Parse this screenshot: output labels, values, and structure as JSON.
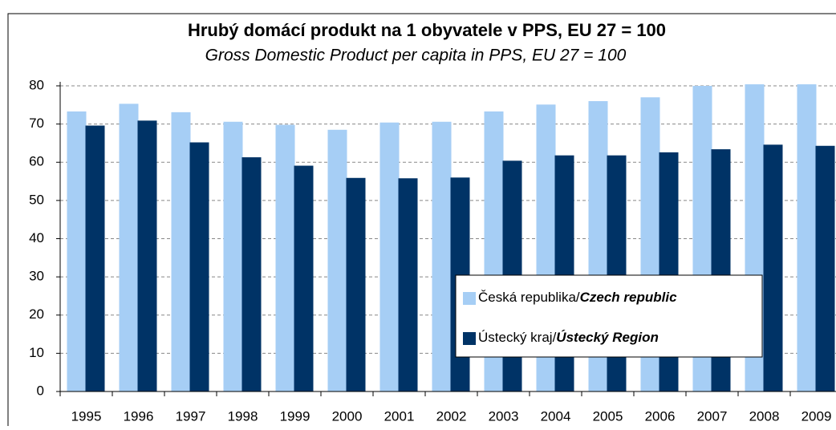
{
  "chart_data": {
    "type": "bar",
    "title": "Hrubý domácí produkt na 1 obyvatele v PPS, EU 27 = 100",
    "subtitle": "Gross Domestic Product per capita in PPS, EU 27 = 100",
    "categories": [
      "1995",
      "1996",
      "1997",
      "1998",
      "1999",
      "2000",
      "2001",
      "2002",
      "2003",
      "2004",
      "2005",
      "2006",
      "2007",
      "2008",
      "2009"
    ],
    "series": [
      {
        "name": "Česká republika/Czech republic",
        "color": "#a6cef5",
        "values": [
          73.3,
          75.3,
          73.1,
          70.6,
          69.8,
          68.5,
          70.4,
          70.6,
          73.3,
          75.1,
          76.0,
          77.0,
          80.0,
          80.4,
          80.4
        ]
      },
      {
        "name": "Ústecký kraj/Ústecký Region",
        "color": "#003366",
        "values": [
          69.6,
          70.9,
          65.2,
          61.3,
          59.1,
          55.9,
          55.8,
          56.0,
          60.4,
          61.8,
          61.8,
          62.6,
          63.4,
          64.6,
          64.3
        ]
      }
    ],
    "ylim": [
      0,
      80
    ],
    "yticks": [
      0,
      10,
      20,
      30,
      40,
      50,
      60,
      70,
      80
    ],
    "grid": true
  }
}
